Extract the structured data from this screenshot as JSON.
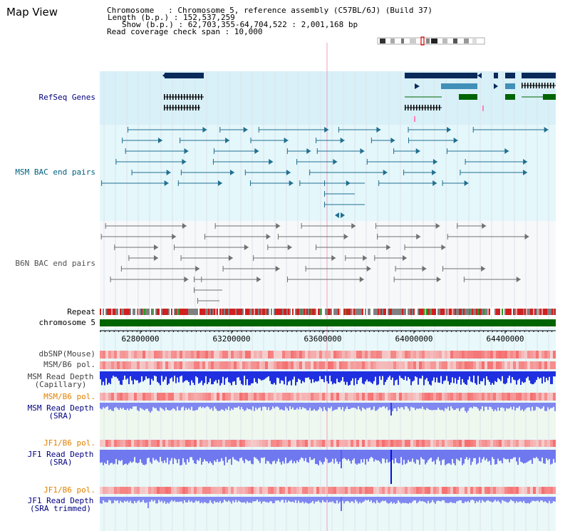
{
  "title": "Map View",
  "info": {
    "line1": "Chromosome   : Chromosome 5, reference assembly (C57BL/6J) (Build 37)",
    "line2": "Length (b.p.) : 152,537,259",
    "line3": "Show (b.p.) : 62,703,355-64,704,522 : 2,001,168 bp",
    "line4": "Read coverage check span : 10,000"
  },
  "tracks": {
    "refseq": "RefSeq Genes",
    "msm_bac": "MSM BAC end pairs",
    "b6n_bac": "B6N BAC end pairs",
    "repeat": "Repeat",
    "chromosome": "chromosome 5",
    "dbsnp": "dbSNP(Mouse)",
    "msm_b6_pol_1": "MSM/B6 pol.",
    "msm_depth_cap": "MSM Read Depth\n(Capillary)",
    "msm_b6_pol_2": "MSM/B6 pol.",
    "msm_depth_sra": "MSM Read Depth\n(SRA)",
    "jf1_b6_pol_1": "JF1/B6 pol.",
    "jf1_depth_sra": "JF1 Read Depth\n(SRA)",
    "jf1_b6_pol_2": "JF1/B6 pol.",
    "jf1_depth_trim": "JF1 Read Depth\n(SRA trimmed)"
  },
  "axis": {
    "ticks": [
      "62800000",
      "63200000",
      "63600000",
      "64000000",
      "64400000"
    ]
  },
  "colors": {
    "label_blue": "#000080",
    "label_teal": "#006080",
    "label_gray": "#505050",
    "label_orange": "#e08000",
    "refseq_bg": "#d8f0f8",
    "chrom_bar": "#006400"
  }
}
